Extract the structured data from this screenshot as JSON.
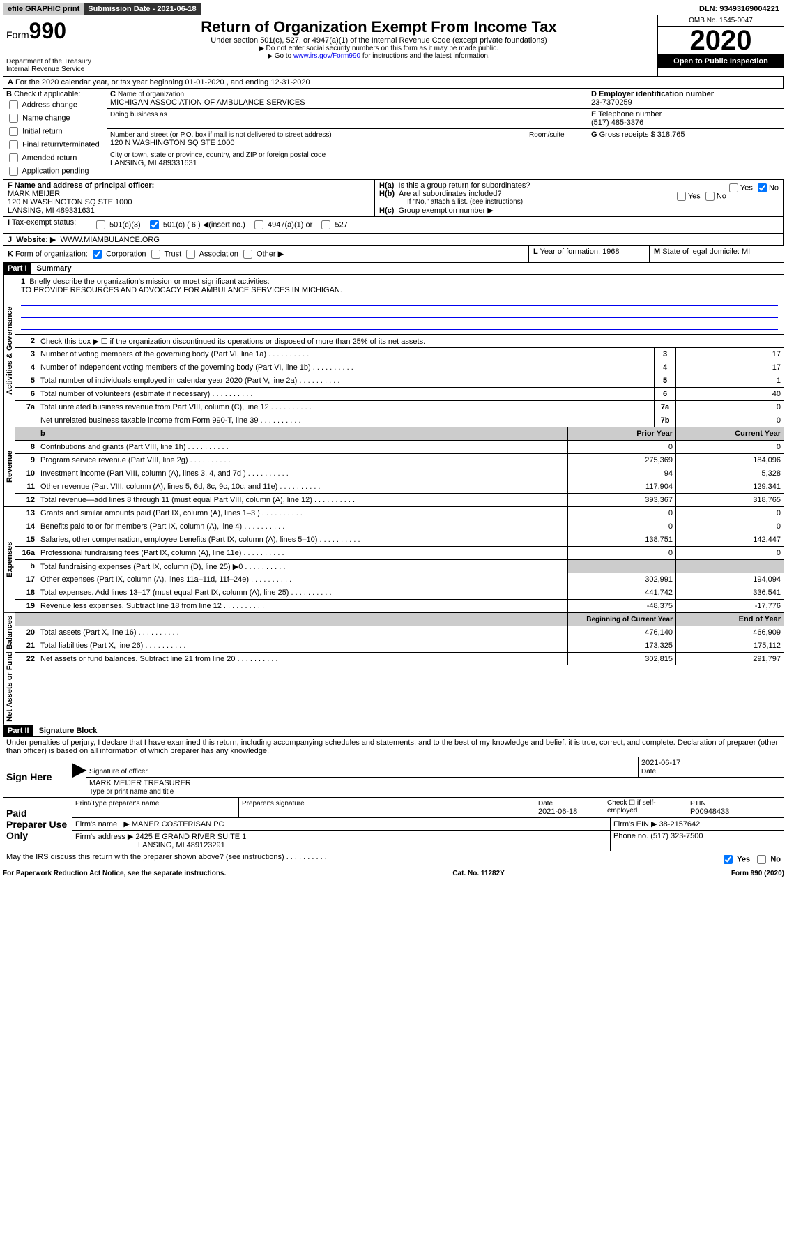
{
  "top": {
    "efile": "efile GRAPHIC print",
    "submission": "Submission Date - 2021-06-18",
    "dln": "DLN: 93493169004221"
  },
  "header": {
    "form": "Form",
    "form_num": "990",
    "title": "Return of Organization Exempt From Income Tax",
    "subtitle": "Under section 501(c), 527, or 4947(a)(1) of the Internal Revenue Code (except private foundations)",
    "note1": "Do not enter social security numbers on this form as it may be made public.",
    "note2_pre": "Go to ",
    "note2_link": "www.irs.gov/Form990",
    "note2_post": " for instructions and the latest information.",
    "dept": "Department of the Treasury\nInternal Revenue Service",
    "omb": "OMB No. 1545-0047",
    "year": "2020",
    "open": "Open to Public Inspection"
  },
  "line_a": "For the 2020 calendar year, or tax year beginning 01-01-2020     , and ending 12-31-2020",
  "box_b": {
    "label": "Check if applicable:",
    "opts": [
      "Address change",
      "Name change",
      "Initial return",
      "Final return/terminated",
      "Amended return",
      "Application pending"
    ]
  },
  "box_c": {
    "label": "Name of organization",
    "name": "MICHIGAN ASSOCIATION OF AMBULANCE SERVICES",
    "dba_label": "Doing business as",
    "street_label": "Number and street (or P.O. box if mail is not delivered to street address)",
    "room_label": "Room/suite",
    "street": "120 N WASHINGTON SQ STE 1000",
    "city_label": "City or town, state or province, country, and ZIP or foreign postal code",
    "city": "LANSING, MI  489331631"
  },
  "box_d": {
    "label": "D Employer identification number",
    "val": "23-7370259"
  },
  "box_e": {
    "label": "E Telephone number",
    "val": "(517) 485-3376"
  },
  "box_g": {
    "label": "G",
    "text": "Gross receipts $ 318,765"
  },
  "box_f": {
    "label": "F  Name and address of principal officer:",
    "name": "MARK MEIJER",
    "addr1": "120 N WASHINGTON SQ STE 1000",
    "addr2": "LANSING, MI  489331631"
  },
  "box_h": {
    "a": "Is this a group return for subordinates?",
    "b": "Are all subordinates included?",
    "b_note": "If \"No,\" attach a list. (see instructions)",
    "c": "Group exemption number"
  },
  "tax_exempt": {
    "label": "Tax-exempt status:",
    "insert": "(insert no.)",
    "c6": "501(c) ( 6 )",
    "c3": "501(c)(3)",
    "a4947": "4947(a)(1) or",
    "s527": "527"
  },
  "box_i": {
    "label": "I",
    "text": "Tax-exempt status:"
  },
  "box_j": {
    "label": "J",
    "text": "Website:",
    "val": "WWW.MIAMBULANCE.ORG"
  },
  "box_k": {
    "text": "Form of organization:",
    "opts": [
      "Corporation",
      "Trust",
      "Association",
      "Other"
    ]
  },
  "box_l": {
    "label": "L",
    "text": "Year of formation: 1968"
  },
  "box_m": {
    "label": "M",
    "text": "State of legal domicile: MI"
  },
  "part1": {
    "label": "Part I",
    "title": "Summary"
  },
  "mission": {
    "num": "1",
    "text": "Briefly describe the organization's mission or most significant activities:",
    "val": "TO PROVIDE RESOURCES AND ADVOCACY FOR AMBULANCE SERVICES IN MICHIGAN."
  },
  "line2": "Check this box ▶ ☐  if the organization discontinued its operations or disposed of more than 25% of its net assets.",
  "sections": {
    "gov": "Activities & Governance",
    "rev": "Revenue",
    "exp": "Expenses",
    "net": "Net Assets or Fund Balances"
  },
  "gov_lines": [
    {
      "n": "3",
      "t": "Number of voting members of the governing body (Part VI, line 1a)",
      "b": "3",
      "v": "17"
    },
    {
      "n": "4",
      "t": "Number of independent voting members of the governing body (Part VI, line 1b)",
      "b": "4",
      "v": "17"
    },
    {
      "n": "5",
      "t": "Total number of individuals employed in calendar year 2020 (Part V, line 2a)",
      "b": "5",
      "v": "1"
    },
    {
      "n": "6",
      "t": "Total number of volunteers (estimate if necessary)",
      "b": "6",
      "v": "40"
    },
    {
      "n": "7a",
      "t": "Total unrelated business revenue from Part VIII, column (C), line 12",
      "b": "7a",
      "v": "0"
    },
    {
      "n": "",
      "t": "Net unrelated business taxable income from Form 990-T, line 39",
      "b": "7b",
      "v": "0"
    }
  ],
  "col_headers": {
    "prior": "Prior Year",
    "current": "Current Year",
    "begin": "Beginning of Current Year",
    "end": "End of Year"
  },
  "rev_lines": [
    {
      "n": "8",
      "t": "Contributions and grants (Part VIII, line 1h)",
      "p": "0",
      "c": "0"
    },
    {
      "n": "9",
      "t": "Program service revenue (Part VIII, line 2g)",
      "p": "275,369",
      "c": "184,096"
    },
    {
      "n": "10",
      "t": "Investment income (Part VIII, column (A), lines 3, 4, and 7d )",
      "p": "94",
      "c": "5,328"
    },
    {
      "n": "11",
      "t": "Other revenue (Part VIII, column (A), lines 5, 6d, 8c, 9c, 10c, and 11e)",
      "p": "117,904",
      "c": "129,341"
    },
    {
      "n": "12",
      "t": "Total revenue—add lines 8 through 11 (must equal Part VIII, column (A), line 12)",
      "p": "393,367",
      "c": "318,765"
    }
  ],
  "exp_lines": [
    {
      "n": "13",
      "t": "Grants and similar amounts paid (Part IX, column (A), lines 1–3 )",
      "p": "0",
      "c": "0"
    },
    {
      "n": "14",
      "t": "Benefits paid to or for members (Part IX, column (A), line 4)",
      "p": "0",
      "c": "0"
    },
    {
      "n": "15",
      "t": "Salaries, other compensation, employee benefits (Part IX, column (A), lines 5–10)",
      "p": "138,751",
      "c": "142,447"
    },
    {
      "n": "16a",
      "t": "Professional fundraising fees (Part IX, column (A), line 11e)",
      "p": "0",
      "c": "0"
    },
    {
      "n": "b",
      "t": "Total fundraising expenses (Part IX, column (D), line 25) ▶0",
      "p": "",
      "c": "",
      "grey": true
    },
    {
      "n": "17",
      "t": "Other expenses (Part IX, column (A), lines 11a–11d, 11f–24e)",
      "p": "302,991",
      "c": "194,094"
    },
    {
      "n": "18",
      "t": "Total expenses. Add lines 13–17 (must equal Part IX, column (A), line 25)",
      "p": "441,742",
      "c": "336,541"
    },
    {
      "n": "19",
      "t": "Revenue less expenses. Subtract line 18 from line 12",
      "p": "-48,375",
      "c": "-17,776"
    }
  ],
  "net_lines": [
    {
      "n": "20",
      "t": "Total assets (Part X, line 16)",
      "p": "476,140",
      "c": "466,909"
    },
    {
      "n": "21",
      "t": "Total liabilities (Part X, line 26)",
      "p": "173,325",
      "c": "175,112"
    },
    {
      "n": "22",
      "t": "Net assets or fund balances. Subtract line 21 from line 20",
      "p": "302,815",
      "c": "291,797"
    }
  ],
  "part2": {
    "label": "Part II",
    "title": "Signature Block"
  },
  "perjury": "Under penalties of perjury, I declare that I have examined this return, including accompanying schedules and statements, and to the best of my knowledge and belief, it is true, correct, and complete. Declaration of preparer (other than officer) is based on all information of which preparer has any knowledge.",
  "sign": {
    "label": "Sign Here",
    "date": "2021-06-17",
    "sig_of": "Signature of officer",
    "date_lbl": "Date",
    "name": "MARK MEIJER  TREASURER",
    "name_lbl": "Type or print name and title"
  },
  "paid": {
    "label": "Paid Preparer Use Only",
    "h1": "Print/Type preparer's name",
    "h2": "Preparer's signature",
    "h3": "Date",
    "h4": "Check ☐ if self-employed",
    "h5": "PTIN",
    "date": "2021-06-18",
    "ptin": "P00948433",
    "firm_lbl": "Firm's name",
    "firm": "MANER COSTERISAN PC",
    "ein_lbl": "Firm's EIN",
    "ein": "38-2157642",
    "addr_lbl": "Firm's address",
    "addr1": "2425 E GRAND RIVER SUITE 1",
    "addr2": "LANSING, MI  489123291",
    "phone_lbl": "Phone no.",
    "phone": "(517) 323-7500"
  },
  "discuss": "May the IRS discuss this return with the preparer shown above? (see instructions)",
  "footer": {
    "left": "For Paperwork Reduction Act Notice, see the separate instructions.",
    "mid": "Cat. No. 11282Y",
    "right": "Form 990 (2020)"
  },
  "yes": "Yes",
  "no": "No"
}
